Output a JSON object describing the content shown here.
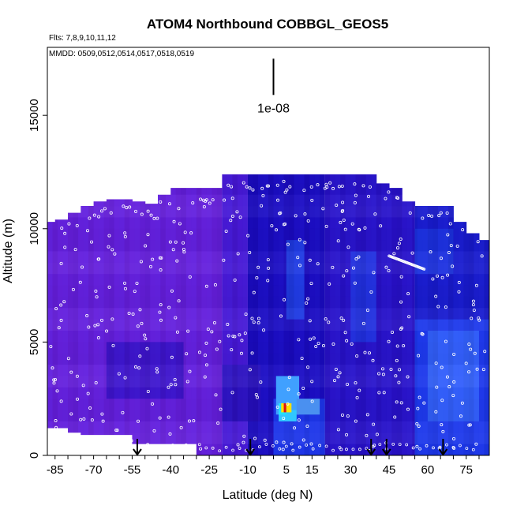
{
  "chart_data": {
    "type": "heatmap",
    "title": "ATOM4 Northbound COBBGL_GEOS5",
    "flights_label": "Flts: 7,8,9,10,11,12",
    "dates_label": "MMDD: 0509,0512,0514,0517,0518,0519",
    "xlabel": "Latitude (deg N)",
    "ylabel": "Altitude (m)",
    "xlim": [
      -88,
      84
    ],
    "ylim": [
      0,
      18000
    ],
    "x_tick_labels": [
      "-85",
      "-70",
      "-55",
      "-40",
      "-25",
      "-10",
      "5",
      "15",
      "30",
      "45",
      "60",
      "75"
    ],
    "x_tick_values": [
      -85,
      -70,
      -55,
      -40,
      -25,
      -10,
      5,
      15,
      30,
      45,
      60,
      75
    ],
    "x_minor_step": 5,
    "y_tick_labels": [
      "0",
      "5000",
      "10000",
      "15000"
    ],
    "y_tick_values": [
      0,
      5000,
      10000,
      15000
    ],
    "scale_bar_label": "1e-08",
    "scale_bar_x": 0,
    "scale_bar_y_range": [
      15900,
      17500
    ],
    "arrow_latitudes": [
      -53,
      -9,
      38,
      44,
      66
    ],
    "colors": {
      "low": "#7a24e0",
      "mid": "#1a10c8",
      "high_blue": "#1a3cff",
      "cyan": "#22c8ff",
      "peak_red": "#e01010",
      "peak_yellow": "#ffe000",
      "points": "#ffffff",
      "axis": "#000000"
    },
    "profile_tops": [
      {
        "lat_from": -88,
        "lat_to": -85,
        "top": 10300
      },
      {
        "lat_from": -85,
        "lat_to": -80,
        "top": 10400
      },
      {
        "lat_from": -80,
        "lat_to": -75,
        "top": 10700
      },
      {
        "lat_from": -75,
        "lat_to": -70,
        "top": 11000
      },
      {
        "lat_from": -70,
        "lat_to": -65,
        "top": 11200
      },
      {
        "lat_from": -65,
        "lat_to": -60,
        "top": 11300
      },
      {
        "lat_from": -60,
        "lat_to": -55,
        "top": 11300
      },
      {
        "lat_from": -55,
        "lat_to": -50,
        "top": 11200
      },
      {
        "lat_from": -50,
        "lat_to": -45,
        "top": 11100
      },
      {
        "lat_from": -45,
        "lat_to": -40,
        "top": 11500
      },
      {
        "lat_from": -40,
        "lat_to": -35,
        "top": 11800
      },
      {
        "lat_from": -35,
        "lat_to": -30,
        "top": 11800
      },
      {
        "lat_from": -30,
        "lat_to": -25,
        "top": 11800
      },
      {
        "lat_from": -25,
        "lat_to": -20,
        "top": 11800
      },
      {
        "lat_from": -20,
        "lat_to": -15,
        "top": 12400
      },
      {
        "lat_from": -15,
        "lat_to": -10,
        "top": 12400
      },
      {
        "lat_from": -10,
        "lat_to": -5,
        "top": 12400
      },
      {
        "lat_from": -5,
        "lat_to": 0,
        "top": 12400
      },
      {
        "lat_from": 0,
        "lat_to": 5,
        "top": 12400
      },
      {
        "lat_from": 5,
        "lat_to": 10,
        "top": 12400
      },
      {
        "lat_from": 10,
        "lat_to": 15,
        "top": 12400
      },
      {
        "lat_from": 15,
        "lat_to": 20,
        "top": 12400
      },
      {
        "lat_from": 20,
        "lat_to": 25,
        "top": 12400
      },
      {
        "lat_from": 25,
        "lat_to": 30,
        "top": 12400
      },
      {
        "lat_from": 30,
        "lat_to": 35,
        "top": 12400
      },
      {
        "lat_from": 35,
        "lat_to": 40,
        "top": 12400
      },
      {
        "lat_from": 40,
        "lat_to": 45,
        "top": 12000
      },
      {
        "lat_from": 45,
        "lat_to": 50,
        "top": 11800
      },
      {
        "lat_from": 50,
        "lat_to": 55,
        "top": 11200
      },
      {
        "lat_from": 55,
        "lat_to": 60,
        "top": 11000
      },
      {
        "lat_from": 60,
        "lat_to": 65,
        "top": 11000
      },
      {
        "lat_from": 65,
        "lat_to": 70,
        "top": 11000
      },
      {
        "lat_from": 70,
        "lat_to": 75,
        "top": 10300
      },
      {
        "lat_from": 75,
        "lat_to": 80,
        "top": 9800
      },
      {
        "lat_from": 80,
        "lat_to": 84,
        "top": 9500
      }
    ],
    "profile_bottoms": [
      {
        "lat_from": -88,
        "lat_to": -82,
        "bottom": 1200
      },
      {
        "lat_from": -82,
        "lat_to": -75,
        "bottom": 1000
      },
      {
        "lat_from": -75,
        "lat_to": -57,
        "bottom": 900
      },
      {
        "lat_from": -57,
        "lat_to": -34,
        "bottom": 500
      },
      {
        "lat_from": -34,
        "lat_to": 84,
        "bottom": 0
      }
    ],
    "bands": [
      {
        "lat_from": -88,
        "lat_to": -20,
        "alt_from": 0,
        "alt_to": 12500,
        "color": "#6a20dc"
      },
      {
        "lat_from": -20,
        "lat_to": -10,
        "alt_from": 0,
        "alt_to": 12500,
        "color": "#4a18d4"
      },
      {
        "lat_from": -10,
        "lat_to": 20,
        "alt_from": 0,
        "alt_to": 12500,
        "color": "#1c0cc0"
      },
      {
        "lat_from": 20,
        "lat_to": 55,
        "alt_from": 0,
        "alt_to": 12500,
        "color": "#2a12c8"
      },
      {
        "lat_from": 55,
        "lat_to": 84,
        "alt_from": 0,
        "alt_to": 12500,
        "color": "#1a1ccc"
      },
      {
        "lat_from": -65,
        "lat_to": -35,
        "alt_from": 2500,
        "alt_to": 5000,
        "color": "#3a14c8"
      },
      {
        "lat_from": -20,
        "lat_to": -5,
        "alt_from": 1500,
        "alt_to": 4000,
        "color": "#2a10b8"
      },
      {
        "lat_from": 0,
        "lat_to": 20,
        "alt_from": 0,
        "alt_to": 2500,
        "color": "#1e40f0"
      },
      {
        "lat_from": 55,
        "lat_to": 84,
        "alt_from": 0,
        "alt_to": 6000,
        "color": "#2040f0"
      },
      {
        "lat_from": 60,
        "lat_to": 80,
        "alt_from": 1500,
        "alt_to": 5500,
        "color": "#3a6cff"
      },
      {
        "lat_from": 5,
        "lat_to": 12,
        "alt_from": 6000,
        "alt_to": 9500,
        "color": "#2246e8"
      },
      {
        "lat_from": 30,
        "lat_to": 40,
        "alt_from": 5000,
        "alt_to": 9000,
        "color": "#2238e0"
      },
      {
        "lat_from": 55,
        "lat_to": 70,
        "alt_from": 8000,
        "alt_to": 10000,
        "color": "#1e36e0"
      }
    ],
    "hotspot": [
      {
        "lat_from": 1,
        "lat_to": 10,
        "alt_from": 1800,
        "alt_to": 3500,
        "color": "#40a0ff"
      },
      {
        "lat_from": 2,
        "lat_to": 9,
        "alt_from": 1500,
        "alt_to": 2000,
        "color": "#30c8ff"
      },
      {
        "lat_from": 2,
        "lat_to": 5,
        "alt_from": 1800,
        "alt_to": 2300,
        "color": "#22e0ff"
      },
      {
        "lat_from": 3,
        "lat_to": 4,
        "alt_from": 1900,
        "alt_to": 2300,
        "color": "#ffe000"
      },
      {
        "lat_from": 4,
        "lat_to": 5,
        "alt_from": 1900,
        "alt_to": 2300,
        "color": "#e01010"
      },
      {
        "lat_from": 5,
        "lat_to": 7,
        "alt_from": 1900,
        "alt_to": 2300,
        "color": "#ffe000"
      },
      {
        "lat_from": 9,
        "lat_to": 18,
        "alt_from": 1800,
        "alt_to": 2500,
        "color": "#4a90f0"
      }
    ]
  }
}
